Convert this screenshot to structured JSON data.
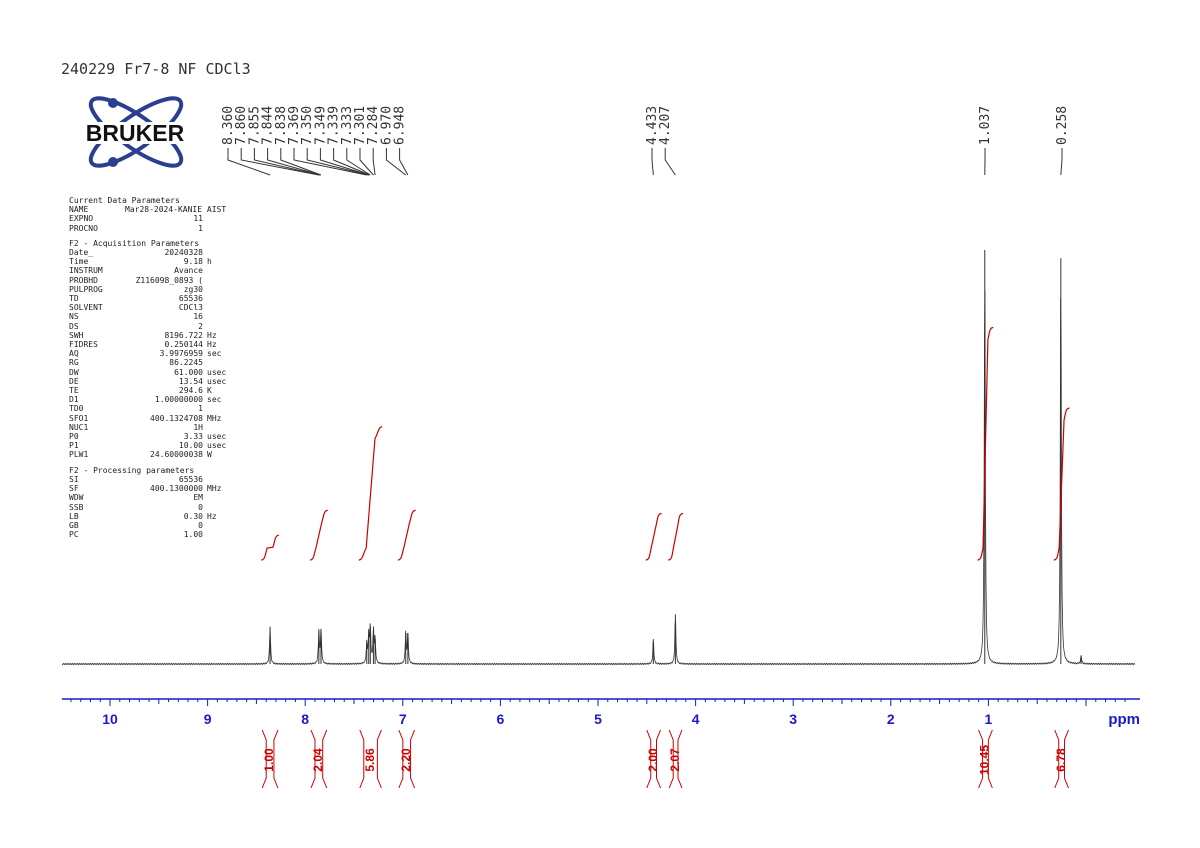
{
  "title": "240229 Fr7-8 NF CDCl3",
  "logo_text": "BRUKER",
  "parameters": [
    {
      "heading": "Current Data Parameters",
      "rows": [
        {
          "key": "NAME",
          "value": "Mar28-2024-KANIE AIST",
          "unit": ""
        },
        {
          "key": "EXPNO",
          "value": "11",
          "unit": ""
        },
        {
          "key": "PROCNO",
          "value": "1",
          "unit": ""
        }
      ]
    },
    {
      "heading": "F2 - Acquisition Parameters",
      "rows": [
        {
          "key": "Date_",
          "value": "20240328",
          "unit": ""
        },
        {
          "key": "Time",
          "value": "9.18",
          "unit": "h"
        },
        {
          "key": "INSTRUM",
          "value": "Avance",
          "unit": ""
        },
        {
          "key": "PROBHD",
          "value": "Z116098_0893 (",
          "unit": ""
        },
        {
          "key": "PULPROG",
          "value": "zg30",
          "unit": ""
        },
        {
          "key": "TD",
          "value": "65536",
          "unit": ""
        },
        {
          "key": "SOLVENT",
          "value": "CDCl3",
          "unit": ""
        },
        {
          "key": "NS",
          "value": "16",
          "unit": ""
        },
        {
          "key": "DS",
          "value": "2",
          "unit": ""
        },
        {
          "key": "SWH",
          "value": "8196.722",
          "unit": "Hz"
        },
        {
          "key": "FIDRES",
          "value": "0.250144",
          "unit": "Hz"
        },
        {
          "key": "AQ",
          "value": "3.9976959",
          "unit": "sec"
        },
        {
          "key": "RG",
          "value": "86.2245",
          "unit": ""
        },
        {
          "key": "DW",
          "value": "61.000",
          "unit": "usec"
        },
        {
          "key": "DE",
          "value": "13.54",
          "unit": "usec"
        },
        {
          "key": "TE",
          "value": "294.6",
          "unit": "K"
        },
        {
          "key": "D1",
          "value": "1.00000000",
          "unit": "sec"
        },
        {
          "key": "TD0",
          "value": "1",
          "unit": ""
        },
        {
          "key": "SFO1",
          "value": "400.1324708",
          "unit": "MHz"
        },
        {
          "key": "NUC1",
          "value": "1H",
          "unit": ""
        },
        {
          "key": "P0",
          "value": "3.33",
          "unit": "usec"
        },
        {
          "key": "P1",
          "value": "10.00",
          "unit": "usec"
        },
        {
          "key": "PLW1",
          "value": "24.60000038",
          "unit": "W"
        }
      ]
    },
    {
      "heading": "F2 - Processing parameters",
      "rows": [
        {
          "key": "SI",
          "value": "65536",
          "unit": ""
        },
        {
          "key": "SF",
          "value": "400.1300000",
          "unit": "MHz"
        },
        {
          "key": "WDW",
          "value": "EM",
          "unit": ""
        },
        {
          "key": "SSB",
          "value": "0",
          "unit": ""
        },
        {
          "key": "LB",
          "value": "0.30",
          "unit": "Hz"
        },
        {
          "key": "GB",
          "value": "0",
          "unit": ""
        },
        {
          "key": "PC",
          "value": "1.00",
          "unit": ""
        }
      ]
    }
  ],
  "colors": {
    "spectrum": "#333333",
    "integral": "#cc0000",
    "axis": "#1a1acc",
    "labels": "#333333"
  },
  "chart_data": {
    "type": "line",
    "xlabel": "ppm",
    "xlim": [
      10.5,
      -0.5
    ],
    "reversed_x": true,
    "x_ticks": [
      10,
      9,
      8,
      7,
      6,
      5,
      4,
      3,
      2,
      1
    ],
    "peak_labels": [
      {
        "group": [
          {
            "text": "8.360",
            "ppm": 8.36
          },
          {
            "text": "7.860",
            "ppm": 7.86
          },
          {
            "text": "7.855",
            "ppm": 7.855
          },
          {
            "text": "7.844",
            "ppm": 7.844
          },
          {
            "text": "7.838",
            "ppm": 7.838
          },
          {
            "text": "7.369",
            "ppm": 7.369
          },
          {
            "text": "7.350",
            "ppm": 7.35
          },
          {
            "text": "7.349",
            "ppm": 7.349
          },
          {
            "text": "7.339",
            "ppm": 7.339
          },
          {
            "text": "7.333",
            "ppm": 7.333
          },
          {
            "text": "7.301",
            "ppm": 7.301
          },
          {
            "text": "7.284",
            "ppm": 7.284
          },
          {
            "text": "6.970",
            "ppm": 6.97
          },
          {
            "text": "6.948",
            "ppm": 6.948
          }
        ]
      },
      {
        "group": [
          {
            "text": "4.433",
            "ppm": 4.433
          },
          {
            "text": "4.207",
            "ppm": 4.207
          }
        ]
      },
      {
        "group": [
          {
            "text": "1.037",
            "ppm": 1.037
          }
        ]
      },
      {
        "group": [
          {
            "text": "0.258",
            "ppm": 0.258
          }
        ]
      }
    ],
    "peaks": [
      {
        "ppm": 8.36,
        "height": 0.09
      },
      {
        "ppm": 7.86,
        "height": 0.08
      },
      {
        "ppm": 7.838,
        "height": 0.085
      },
      {
        "ppm": 7.369,
        "height": 0.05
      },
      {
        "ppm": 7.349,
        "height": 0.07
      },
      {
        "ppm": 7.333,
        "height": 0.09
      },
      {
        "ppm": 7.301,
        "height": 0.08
      },
      {
        "ppm": 7.284,
        "height": 0.06
      },
      {
        "ppm": 6.97,
        "height": 0.075
      },
      {
        "ppm": 6.948,
        "height": 0.075
      },
      {
        "ppm": 4.433,
        "height": 0.06
      },
      {
        "ppm": 4.207,
        "height": 0.12
      },
      {
        "ppm": 1.037,
        "height": 1.0
      },
      {
        "ppm": 0.258,
        "height": 0.98
      },
      {
        "ppm": 0.05,
        "height": 0.02
      }
    ],
    "integrals": [
      {
        "from": 8.42,
        "to": 8.3,
        "value": "1.00",
        "level": 0.08
      },
      {
        "from": 7.92,
        "to": 7.8,
        "value": "2.04",
        "level": 0.16
      },
      {
        "from": 7.42,
        "to": 7.24,
        "value": "5.86",
        "level": 0.43
      },
      {
        "from": 7.02,
        "to": 6.9,
        "value": "2.20",
        "level": 0.16
      },
      {
        "from": 4.48,
        "to": 4.38,
        "value": "2.00",
        "level": 0.15
      },
      {
        "from": 4.25,
        "to": 4.16,
        "value": "2.07",
        "level": 0.15
      },
      {
        "from": 1.08,
        "to": 0.98,
        "value": "10.45",
        "level": 0.75
      },
      {
        "from": 0.3,
        "to": 0.2,
        "value": "6.78",
        "level": 0.49
      }
    ]
  }
}
